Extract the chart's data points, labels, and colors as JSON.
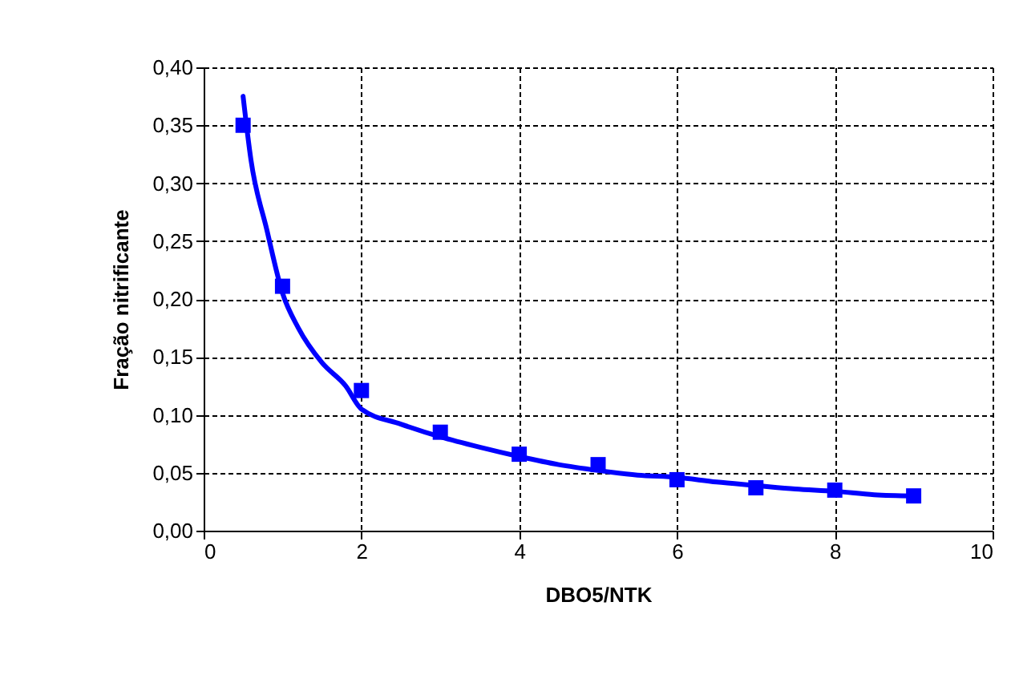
{
  "chart_data": {
    "type": "line",
    "xlabel": "DBO5/NTK",
    "ylabel": "Fração nitrificante",
    "xlim": [
      0,
      10
    ],
    "xticks": [
      0,
      2,
      4,
      6,
      8,
      10
    ],
    "ylim": [
      0,
      0.4
    ],
    "yticks": [
      {
        "value": 0,
        "label": "0,00"
      },
      {
        "value": 0.05,
        "label": "0,05"
      },
      {
        "value": 0.1,
        "label": "0,10"
      },
      {
        "value": 0.15,
        "label": "0,15"
      },
      {
        "value": 0.2,
        "label": "0,20"
      },
      {
        "value": 0.25,
        "label": "0,25"
      },
      {
        "value": 0.3,
        "label": "0,30"
      },
      {
        "value": 0.35,
        "label": "0,35"
      },
      {
        "value": 0.4,
        "label": "0,40"
      }
    ],
    "grid": true,
    "line_style": "solid",
    "series": [
      {
        "type": "line",
        "color": "#0000ff",
        "x": [
          0.5,
          0.6,
          0.8,
          1,
          1.2,
          1.5,
          1.8,
          2,
          2.5,
          3,
          3.5,
          4,
          4.5,
          5,
          5.5,
          6,
          6.5,
          7,
          7.5,
          8,
          8.5,
          9
        ],
        "values": [
          0.375,
          0.32,
          0.26,
          0.205,
          0.175,
          0.145,
          0.125,
          0.105,
          0.092,
          0.081,
          0.072,
          0.064,
          0.057,
          0.052,
          0.048,
          0.046,
          0.042,
          0.039,
          0.036,
          0.034,
          0.031,
          0.03
        ]
      },
      {
        "type": "scatter",
        "marker": "square",
        "color": "#0000ff",
        "x": [
          0.5,
          1,
          2,
          3,
          4,
          5,
          6,
          7,
          8,
          9
        ],
        "values": [
          0.35,
          0.211,
          0.121,
          0.085,
          0.066,
          0.057,
          0.044,
          0.037,
          0.035,
          0.03
        ]
      }
    ]
  }
}
